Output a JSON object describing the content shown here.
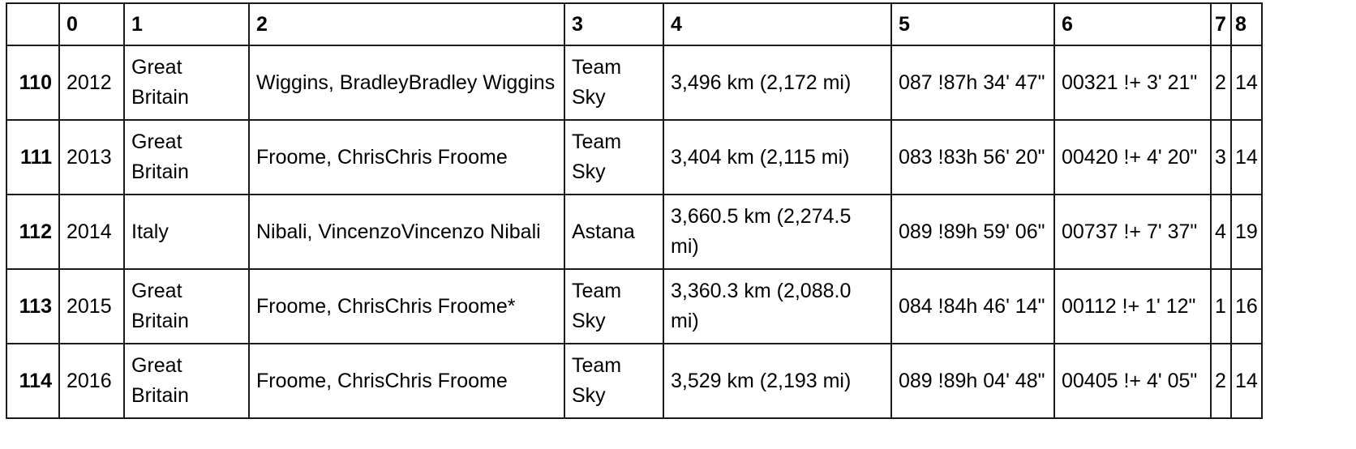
{
  "table": {
    "columns": [
      "",
      "0",
      "1",
      "2",
      "3",
      "4",
      "5",
      "6",
      "7",
      "8"
    ],
    "rows": [
      {
        "index": "110",
        "cells": [
          "2012",
          "Great Britain",
          "Wiggins, BradleyBradley Wiggins",
          "Team Sky",
          "3,496 km (2,172 mi)",
          "087 !87h 34' 47\"",
          "00321 !+ 3' 21\"",
          "2",
          "14"
        ]
      },
      {
        "index": "111",
        "cells": [
          "2013",
          "Great Britain",
          "Froome, ChrisChris Froome",
          "Team Sky",
          "3,404 km (2,115 mi)",
          "083 !83h 56' 20\"",
          "00420 !+ 4' 20\"",
          "3",
          "14"
        ]
      },
      {
        "index": "112",
        "cells": [
          "2014",
          "Italy",
          "Nibali, VincenzoVincenzo Nibali",
          "Astana",
          "3,660.5 km (2,274.5 mi)",
          "089 !89h 59' 06\"",
          "00737 !+ 7' 37\"",
          "4",
          "19"
        ]
      },
      {
        "index": "113",
        "cells": [
          "2015",
          "Great Britain",
          "Froome, ChrisChris Froome*",
          "Team Sky",
          "3,360.3 km (2,088.0 mi)",
          "084 !84h 46' 14\"",
          "00112 !+ 1' 12\"",
          "1",
          "16"
        ]
      },
      {
        "index": "114",
        "cells": [
          "2016",
          "Great Britain",
          "Froome, ChrisChris Froome",
          "Team Sky",
          "3,529 km (2,193 mi)",
          "089 !89h 04' 48\"",
          "00405 !+ 4' 05\"",
          "2",
          "14"
        ]
      }
    ]
  }
}
